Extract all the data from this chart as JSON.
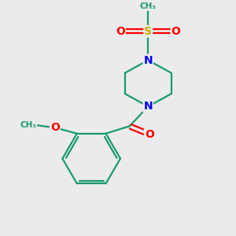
{
  "background_color": "#ebebeb",
  "atom_colors": {
    "C": "#1a9a6c",
    "N": "#0000ff",
    "O": "#ff0000",
    "S": "#ccaa00"
  },
  "bond_color": "#1a9a6c",
  "figsize": [
    3.0,
    3.0
  ],
  "dpi": 100
}
